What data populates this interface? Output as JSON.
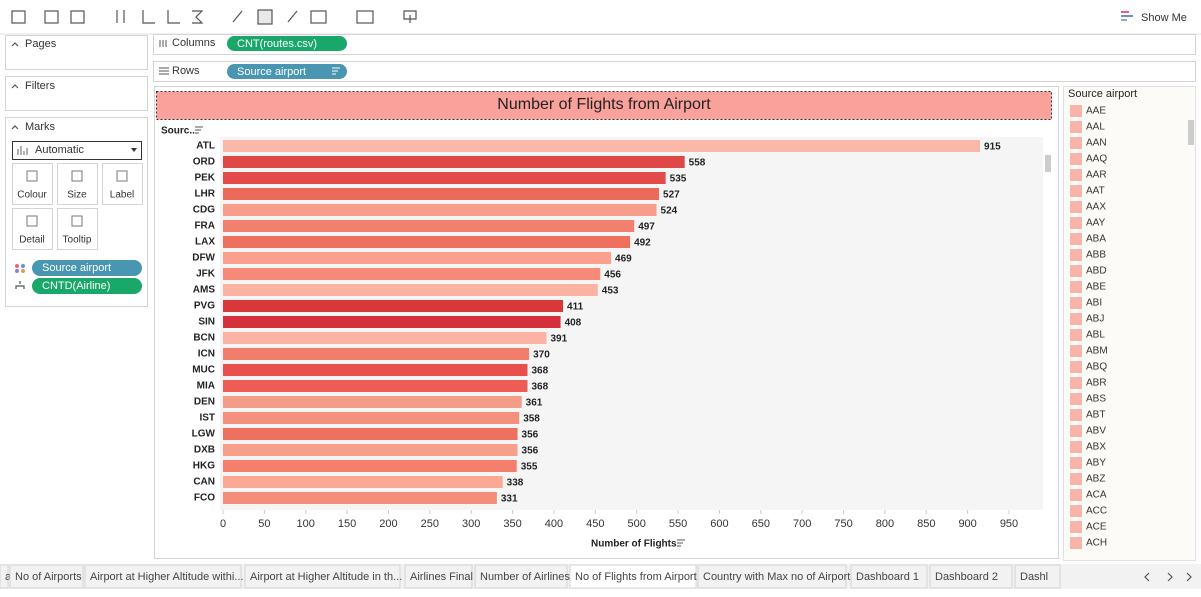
{
  "toolbar": {
    "show_me": "Show Me"
  },
  "cards": {
    "pages": "Pages",
    "filters": "Filters",
    "marks": "Marks",
    "mark_type": "Automatic",
    "buttons": [
      "Colour",
      "Size",
      "Label",
      "Detail",
      "Tooltip"
    ],
    "pills": [
      "Source airport",
      "CNTD(Airline)"
    ]
  },
  "shelves": {
    "columns_label": "Columns",
    "columns_pill": "CNT(routes.csv)",
    "rows_label": "Rows",
    "rows_pill": "Source airport"
  },
  "chart_data": {
    "type": "bar",
    "orientation": "horizontal",
    "title": "Number of Flights from Airport",
    "y_label": "Sourc..",
    "x_label": "Number of Flights",
    "categories": [
      "ATL",
      "ORD",
      "PEK",
      "LHR",
      "CDG",
      "FRA",
      "LAX",
      "DFW",
      "JFK",
      "AMS",
      "PVG",
      "SIN",
      "BCN",
      "ICN",
      "MUC",
      "MIA",
      "DEN",
      "IST",
      "LGW",
      "DXB",
      "HKG",
      "CAN",
      "FCO"
    ],
    "values": [
      915,
      558,
      535,
      527,
      524,
      497,
      492,
      469,
      456,
      453,
      411,
      408,
      391,
      370,
      368,
      368,
      361,
      358,
      356,
      356,
      355,
      338,
      331
    ],
    "colors": [
      "#f9b8a8",
      "#e04848",
      "#e34b4b",
      "#ec6a5a",
      "#f79d8c",
      "#f2806e",
      "#ef705f",
      "#fba08e",
      "#f68a76",
      "#fbb3a1",
      "#d93838",
      "#d42f3a",
      "#fbb3a3",
      "#f17d6a",
      "#e94f4c",
      "#ee5d55",
      "#f39c88",
      "#f4907c",
      "#f0705f",
      "#f6a08c",
      "#f57f6d",
      "#fba993",
      "#f48d79"
    ],
    "xlim": [
      0,
      990
    ],
    "xticks": [
      0,
      50,
      100,
      150,
      200,
      250,
      300,
      350,
      400,
      450,
      500,
      550,
      600,
      650,
      700,
      750,
      800,
      850,
      900,
      950
    ]
  },
  "legend": {
    "title": "Source airport",
    "color": "#f9b3a8",
    "items": [
      "AAE",
      "AAL",
      "AAN",
      "AAQ",
      "AAR",
      "AAT",
      "AAX",
      "AAY",
      "ABA",
      "ABB",
      "ABD",
      "ABE",
      "ABI",
      "ABJ",
      "ABL",
      "ABM",
      "ABQ",
      "ABR",
      "ABS",
      "ABT",
      "ABV",
      "ABX",
      "ABY",
      "ABZ",
      "ACA",
      "ACC",
      "ACE",
      "ACH"
    ]
  },
  "tabs": [
    "al",
    "No of Airports",
    "Airport at Higher Altitude withi...",
    "Airport at Higher Altitude in th...",
    "Airlines Final",
    "Number of Airlines",
    "No of Flights from Airport",
    "Country with Max no of Airport",
    "Dashboard 1",
    "Dashboard 2",
    "Dashl"
  ]
}
